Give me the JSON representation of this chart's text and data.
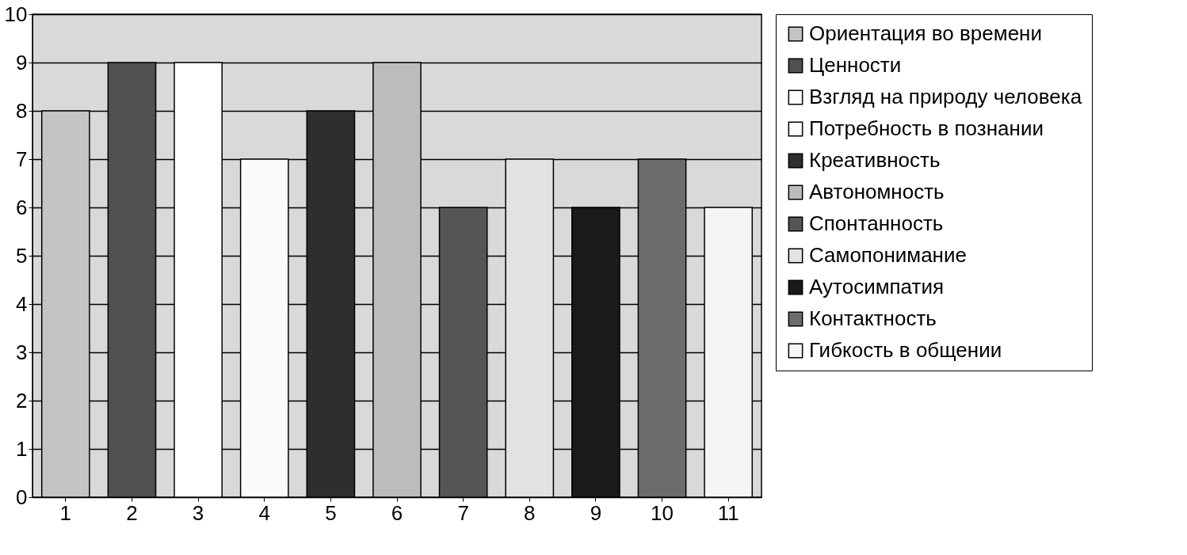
{
  "chart_data": {
    "type": "bar",
    "categories": [
      "1",
      "2",
      "3",
      "4",
      "5",
      "6",
      "7",
      "8",
      "9",
      "10",
      "11"
    ],
    "series": [
      {
        "name": "Ориентация во времени",
        "color": "#c4c4c4",
        "values": [
          8,
          null,
          null,
          null,
          null,
          null,
          null,
          null,
          null,
          null,
          null
        ]
      },
      {
        "name": "Ценности",
        "color": "#505050",
        "values": [
          null,
          9,
          null,
          null,
          null,
          null,
          null,
          null,
          null,
          null,
          null
        ]
      },
      {
        "name": "Взгляд на природу человека",
        "color": "#ffffff",
        "values": [
          null,
          null,
          9,
          null,
          null,
          null,
          null,
          null,
          null,
          null,
          null
        ]
      },
      {
        "name": "Потребность в познании",
        "color": "#fafafa",
        "values": [
          null,
          null,
          null,
          7,
          null,
          null,
          null,
          null,
          null,
          null,
          null
        ]
      },
      {
        "name": "Креативность",
        "color": "#2e2e2e",
        "values": [
          null,
          null,
          null,
          null,
          8,
          null,
          null,
          null,
          null,
          null,
          null
        ]
      },
      {
        "name": "Автономность",
        "color": "#bcbcbc",
        "values": [
          null,
          null,
          null,
          null,
          null,
          9,
          null,
          null,
          null,
          null,
          null
        ]
      },
      {
        "name": "Спонтанность",
        "color": "#555555",
        "values": [
          null,
          null,
          null,
          null,
          null,
          null,
          6,
          null,
          null,
          null,
          null
        ]
      },
      {
        "name": "Самопонимание",
        "color": "#e2e2e2",
        "values": [
          null,
          null,
          null,
          null,
          null,
          null,
          null,
          7,
          null,
          null,
          null
        ]
      },
      {
        "name": "Аутосимпатия",
        "color": "#1a1a1a",
        "values": [
          null,
          null,
          null,
          null,
          null,
          null,
          null,
          null,
          6,
          null,
          null
        ]
      },
      {
        "name": "Контактность",
        "color": "#6c6c6c",
        "values": [
          null,
          null,
          null,
          null,
          null,
          null,
          null,
          null,
          null,
          7,
          null
        ]
      },
      {
        "name": "Гибкость в общении",
        "color": "#f5f5f5",
        "values": [
          null,
          null,
          null,
          null,
          null,
          null,
          null,
          null,
          null,
          null,
          6
        ]
      }
    ],
    "ylim": [
      0,
      10
    ],
    "yticks": [
      0,
      1,
      2,
      3,
      4,
      5,
      6,
      7,
      8,
      9,
      10
    ],
    "grid": "y",
    "legend": "right"
  }
}
